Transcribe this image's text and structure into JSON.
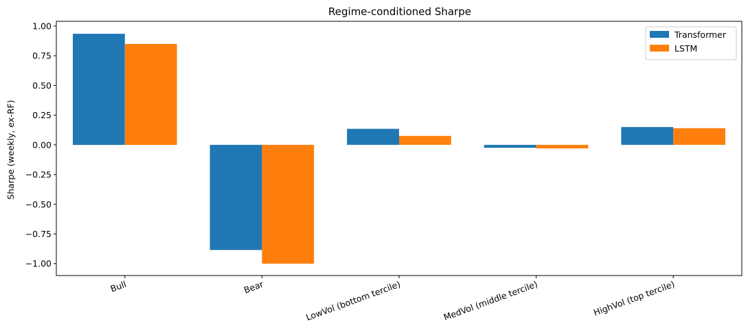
{
  "chart_data": {
    "type": "bar",
    "title": "Regime-conditioned Sharpe",
    "xlabel": "",
    "ylabel": "Sharpe (weekly, ex-RF)",
    "categories": [
      "Bull",
      "Bear",
      "LowVol (bottom tercile)",
      "MedVol (middle tercile)",
      "HighVol (top tercile)"
    ],
    "series": [
      {
        "name": "Transformer",
        "color": "#1f77b4",
        "values": [
          0.935,
          -0.885,
          0.135,
          -0.025,
          0.15
        ]
      },
      {
        "name": "LSTM",
        "color": "#ff7f0e",
        "values": [
          0.85,
          -1.0,
          0.075,
          -0.03,
          0.14
        ]
      }
    ],
    "ylim": [
      -1.1,
      1.04
    ],
    "yticks": [
      1.0,
      0.75,
      0.5,
      0.25,
      0.0,
      -0.25,
      -0.5,
      -0.75,
      -1.0
    ],
    "ytick_labels": [
      "1.00",
      "0.75",
      "0.50",
      "0.25",
      "0.00",
      "−0.25",
      "−0.50",
      "−0.75",
      "−1.00"
    ],
    "legend_position": "top-right",
    "grid": false
  }
}
